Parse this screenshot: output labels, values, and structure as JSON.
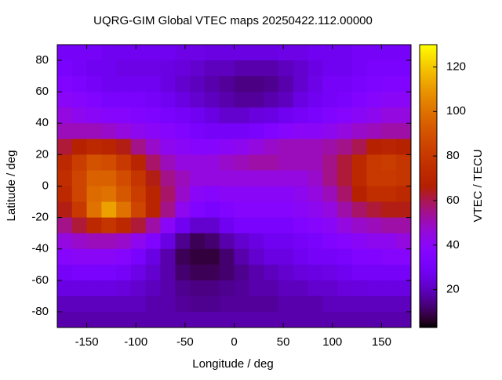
{
  "chart_data": {
    "type": "heatmap",
    "title": "UQRG-GIM Global VTEC maps 20250422.112.00000",
    "x_label": "Longitude / deg",
    "y_label": "Latitude / deg",
    "colorbar_label": "VTEC / TECU",
    "colormap": "gnuplot",
    "xlim": [
      -180,
      180
    ],
    "ylim": [
      -90,
      90
    ],
    "clim": [
      3,
      130
    ],
    "xticks": [
      -150,
      -100,
      -50,
      0,
      50,
      100,
      150
    ],
    "yticks": [
      -80,
      -60,
      -40,
      -20,
      0,
      20,
      40,
      60,
      80
    ],
    "cticks": [
      20,
      40,
      60,
      80,
      100,
      120
    ],
    "x": [
      -172.5,
      -157.5,
      -142.5,
      -127.5,
      -112.5,
      -97.5,
      -82.5,
      -67.5,
      -52.5,
      -37.5,
      -22.5,
      -7.5,
      7.5,
      22.5,
      37.5,
      52.5,
      67.5,
      82.5,
      97.5,
      112.5,
      127.5,
      142.5,
      157.5,
      172.5
    ],
    "y": [
      85,
      75,
      65,
      55,
      45,
      35,
      25,
      15,
      5,
      -5,
      -15,
      -25,
      -35,
      -45,
      -55,
      -65,
      -75,
      -85
    ],
    "z": [
      [
        30,
        30,
        30,
        28,
        28,
        28,
        28,
        28,
        26,
        26,
        25,
        25,
        25,
        25,
        25,
        26,
        26,
        28,
        28,
        28,
        30,
        30,
        30,
        30
      ],
      [
        32,
        30,
        28,
        28,
        26,
        26,
        26,
        25,
        24,
        22,
        20,
        20,
        18,
        18,
        18,
        20,
        22,
        25,
        28,
        28,
        30,
        32,
        32,
        32
      ],
      [
        35,
        33,
        30,
        28,
        28,
        28,
        28,
        25,
        22,
        20,
        18,
        16,
        14,
        14,
        15,
        18,
        22,
        26,
        30,
        30,
        32,
        34,
        35,
        35
      ],
      [
        40,
        38,
        35,
        32,
        32,
        32,
        30,
        28,
        25,
        22,
        20,
        18,
        16,
        16,
        18,
        20,
        25,
        28,
        30,
        32,
        35,
        38,
        40,
        40
      ],
      [
        45,
        42,
        40,
        38,
        38,
        36,
        34,
        32,
        30,
        28,
        25,
        22,
        22,
        24,
        25,
        28,
        30,
        32,
        35,
        38,
        40,
        42,
        45,
        45
      ],
      [
        50,
        50,
        50,
        48,
        45,
        42,
        40,
        38,
        35,
        32,
        30,
        30,
        30,
        32,
        35,
        38,
        40,
        40,
        42,
        45,
        48,
        50,
        52,
        52
      ],
      [
        62,
        68,
        72,
        70,
        65,
        55,
        48,
        42,
        40,
        38,
        38,
        40,
        42,
        45,
        48,
        50,
        50,
        50,
        52,
        55,
        60,
        68,
        70,
        68
      ],
      [
        72,
        82,
        90,
        88,
        80,
        70,
        58,
        50,
        45,
        45,
        45,
        48,
        50,
        52,
        52,
        50,
        50,
        50,
        55,
        62,
        72,
        80,
        82,
        78
      ],
      [
        75,
        85,
        95,
        95,
        88,
        78,
        65,
        55,
        50,
        45,
        45,
        45,
        45,
        45,
        45,
        45,
        45,
        48,
        55,
        62,
        72,
        80,
        80,
        78
      ],
      [
        72,
        85,
        98,
        100,
        92,
        82,
        70,
        58,
        48,
        40,
        38,
        40,
        40,
        40,
        40,
        40,
        42,
        45,
        50,
        58,
        68,
        75,
        75,
        72
      ],
      [
        65,
        80,
        100,
        112,
        100,
        85,
        70,
        55,
        42,
        35,
        32,
        35,
        38,
        38,
        38,
        38,
        40,
        42,
        45,
        52,
        58,
        62,
        65,
        65
      ],
      [
        55,
        62,
        72,
        78,
        72,
        62,
        52,
        40,
        28,
        22,
        22,
        28,
        32,
        32,
        32,
        32,
        35,
        38,
        40,
        45,
        48,
        50,
        52,
        52
      ],
      [
        45,
        48,
        50,
        50,
        48,
        42,
        35,
        25,
        15,
        10,
        12,
        18,
        22,
        25,
        28,
        28,
        30,
        32,
        35,
        38,
        40,
        42,
        42,
        45
      ],
      [
        38,
        40,
        40,
        40,
        38,
        32,
        25,
        18,
        10,
        8,
        8,
        12,
        18,
        22,
        25,
        25,
        28,
        30,
        30,
        32,
        35,
        35,
        38,
        38
      ],
      [
        30,
        32,
        32,
        32,
        30,
        26,
        22,
        18,
        12,
        10,
        10,
        12,
        15,
        18,
        20,
        22,
        24,
        25,
        26,
        28,
        30,
        30,
        30,
        30
      ],
      [
        25,
        25,
        25,
        25,
        24,
        22,
        20,
        18,
        15,
        14,
        14,
        15,
        16,
        18,
        18,
        20,
        20,
        22,
        22,
        24,
        24,
        25,
        25,
        25
      ],
      [
        20,
        20,
        20,
        20,
        20,
        20,
        18,
        18,
        16,
        15,
        15,
        16,
        16,
        16,
        16,
        18,
        18,
        18,
        20,
        20,
        20,
        20,
        20,
        20
      ],
      [
        18,
        18,
        18,
        18,
        18,
        18,
        18,
        18,
        18,
        18,
        18,
        18,
        18,
        18,
        18,
        18,
        18,
        18,
        18,
        18,
        18,
        18,
        18,
        18
      ]
    ]
  }
}
